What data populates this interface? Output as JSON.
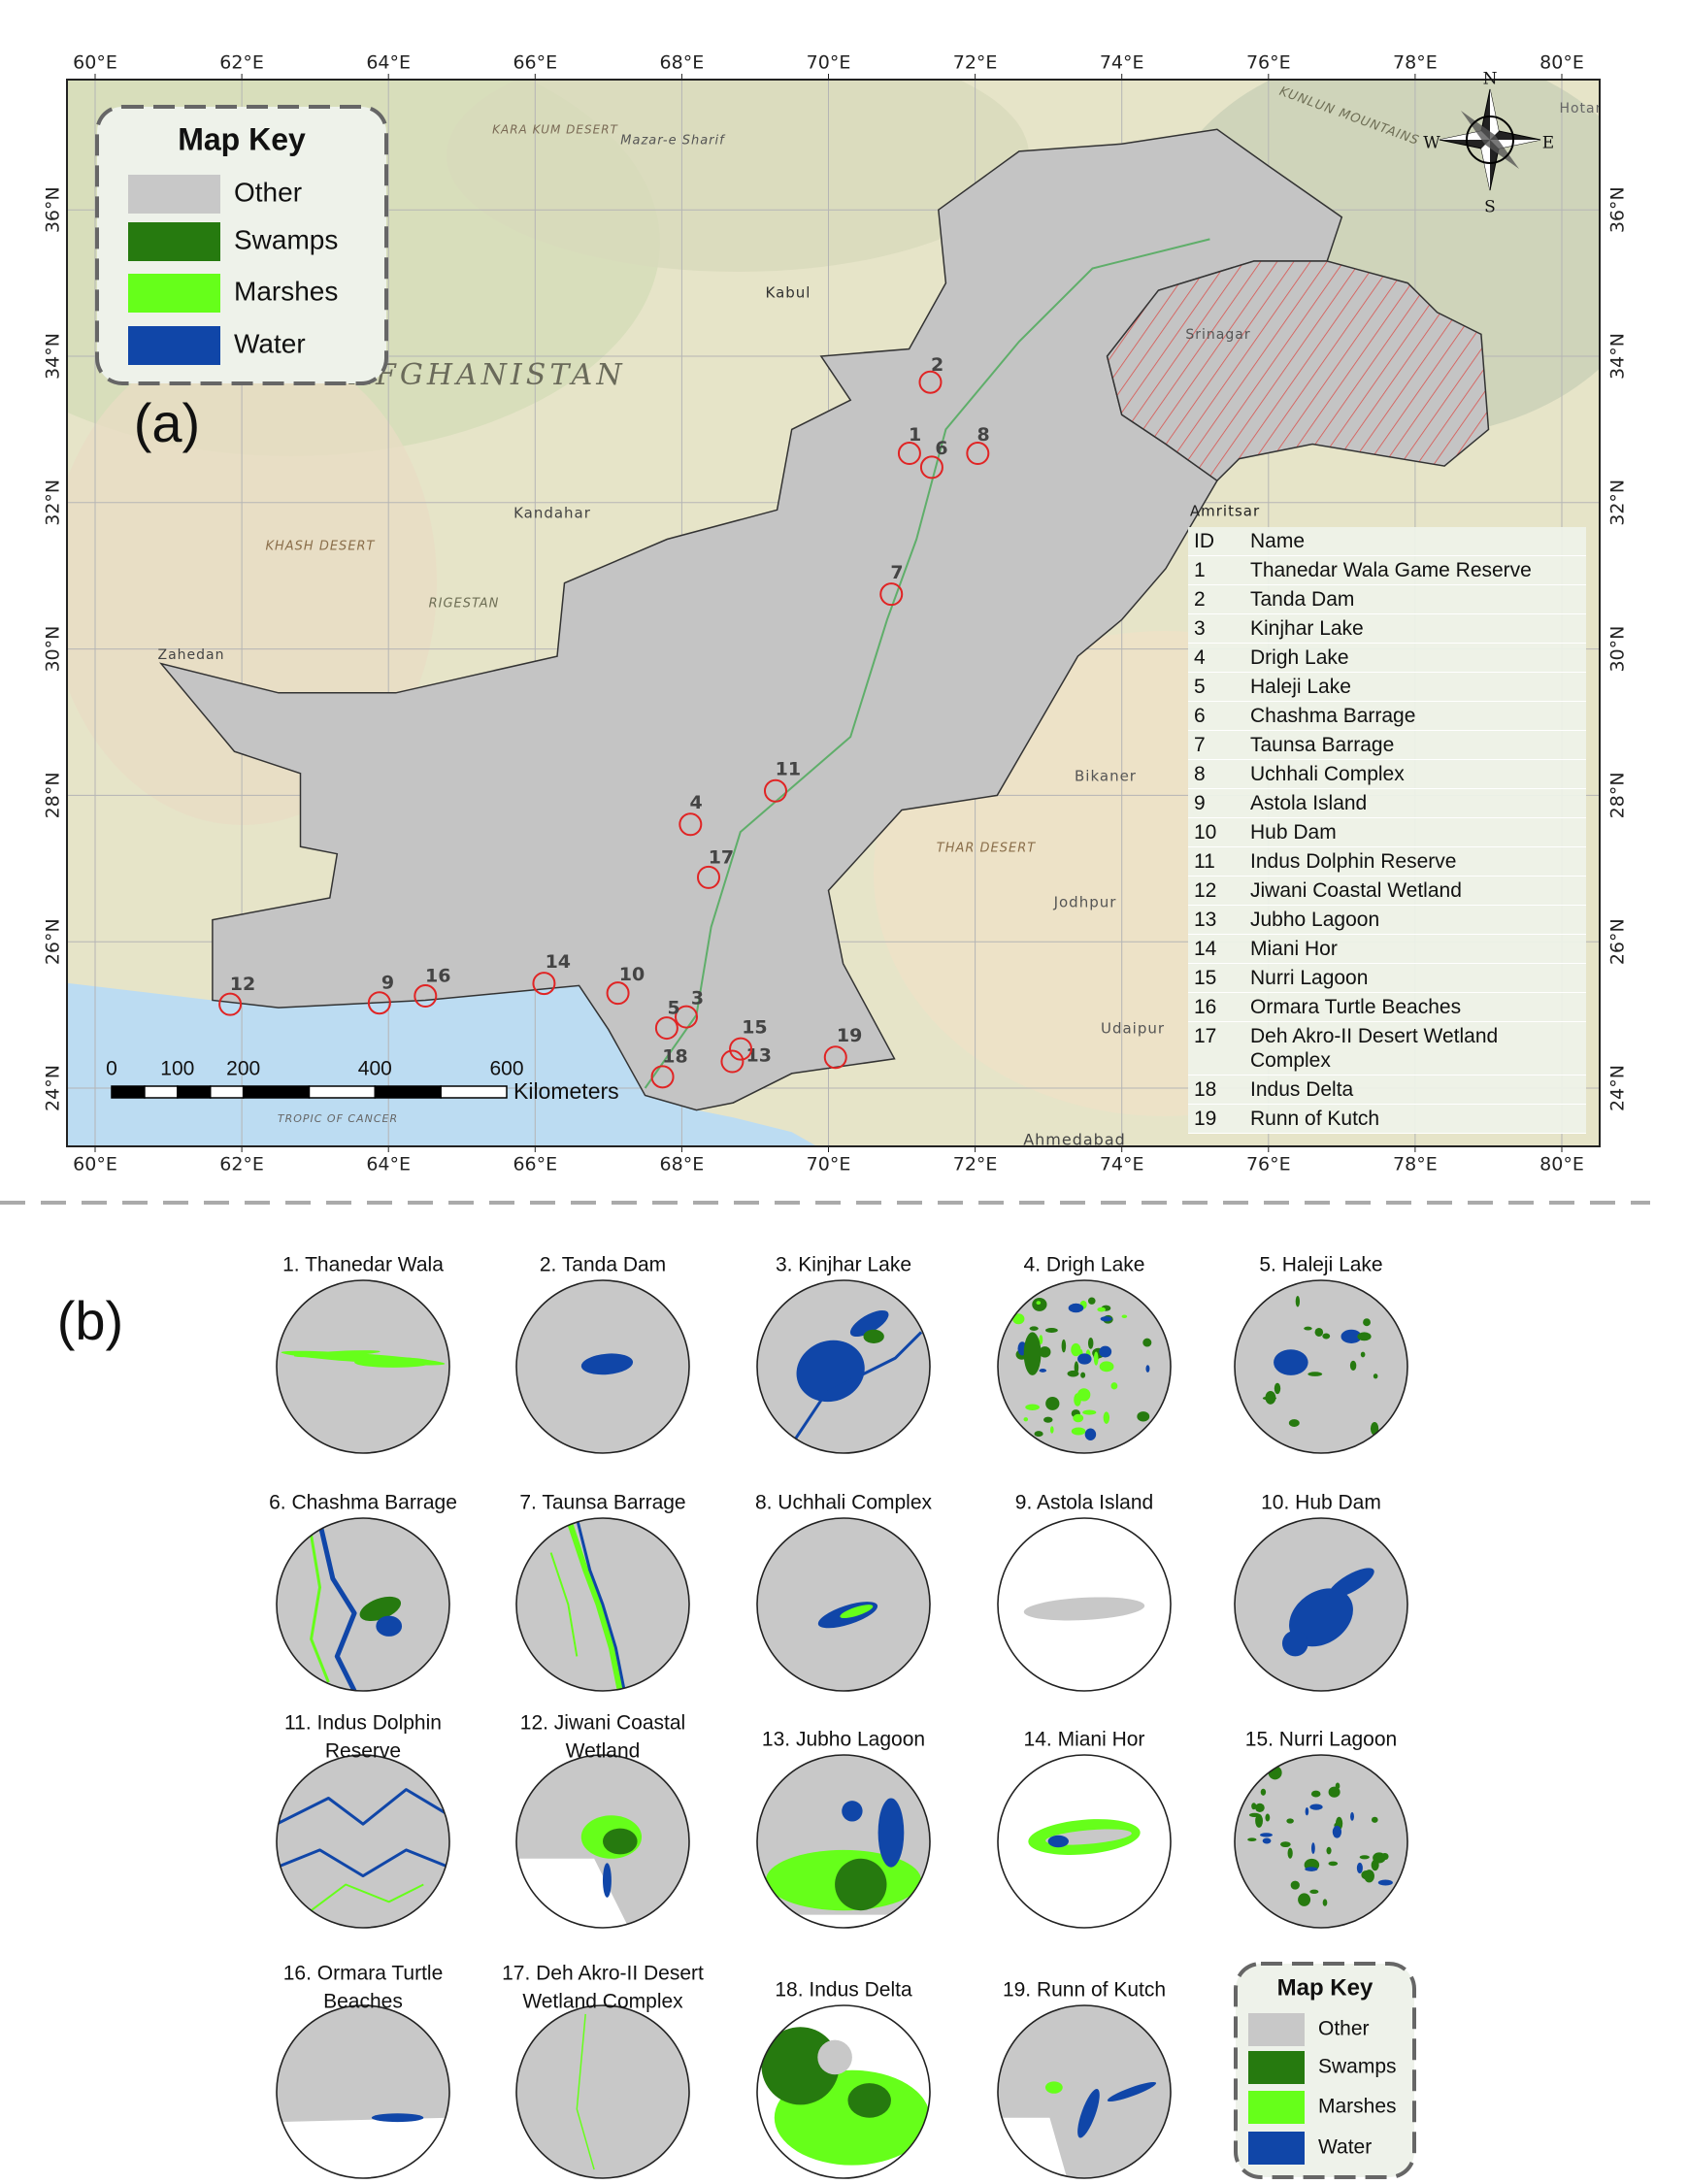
{
  "panel_a": {
    "label": "(a)",
    "lon_ticks": [
      "60°E",
      "62°E",
      "64°E",
      "66°E",
      "68°E",
      "70°E",
      "72°E",
      "74°E",
      "76°E",
      "78°E",
      "80°E"
    ],
    "lat_ticks": [
      "24°N",
      "26°N",
      "28°N",
      "30°N",
      "32°N",
      "34°N",
      "36°N"
    ],
    "map_key": {
      "title": "Map Key",
      "items": [
        {
          "label": "Other",
          "color": "#c8c8c8"
        },
        {
          "label": "Swamps",
          "color": "#267a0f"
        },
        {
          "label": "Marshes",
          "color": "#66ff1a"
        },
        {
          "label": "Water",
          "color": "#1046a8"
        }
      ]
    },
    "compass": [
      "N",
      "E",
      "S",
      "W"
    ],
    "scale_bar": {
      "ticks": [
        "0",
        "100",
        "200",
        "400",
        "600"
      ],
      "unit": "Kilometers"
    },
    "places": [
      "KARA KUM DESERT",
      "Mazar-e Sharif",
      "Kabul",
      "AFGHANISTAN",
      "Kandahar",
      "KHASH DESERT",
      "RIGESTAN",
      "Zahedan",
      "Amritsar",
      "Srinagar",
      "Bikaner",
      "THAR DESERT",
      "Jodhpur",
      "Udaipur",
      "Ahmedabad",
      "TROPIC OF CANCER",
      "KUNLUN MOUNTAINS",
      "Hotan"
    ],
    "sites": {
      "header": [
        "ID",
        "Name"
      ],
      "rows": [
        [
          "1",
          "Thanedar Wala Game Reserve"
        ],
        [
          "2",
          "Tanda Dam"
        ],
        [
          "3",
          "Kinjhar Lake"
        ],
        [
          "4",
          "Drigh Lake"
        ],
        [
          "5",
          "Haleji Lake"
        ],
        [
          "6",
          "Chashma Barrage"
        ],
        [
          "7",
          "Taunsa Barrage"
        ],
        [
          "8",
          "Uchhali Complex"
        ],
        [
          "9",
          "Astola Island"
        ],
        [
          "10",
          "Hub Dam"
        ],
        [
          "11",
          "Indus Dolphin Reserve"
        ],
        [
          "12",
          "Jiwani Coastal Wetland"
        ],
        [
          "13",
          "Jubho Lagoon"
        ],
        [
          "14",
          "Miani Hor"
        ],
        [
          "15",
          "Nurri Lagoon"
        ],
        [
          "16",
          "Ormara Turtle Beaches"
        ],
        [
          "17",
          "Deh Akro-II Desert Wetland Complex"
        ],
        [
          "18",
          "Indus Delta"
        ],
        [
          "19",
          "Runn of Kutch"
        ]
      ]
    }
  },
  "panel_b": {
    "label": "(b)",
    "insets": [
      [
        "1. Thanedar Wala"
      ],
      [
        "2. Tanda Dam"
      ],
      [
        "3. Kinjhar Lake"
      ],
      [
        "4. Drigh Lake"
      ],
      [
        "5. Haleji Lake"
      ],
      [
        "6. Chashma Barrage"
      ],
      [
        "7. Taunsa Barrage"
      ],
      [
        "8. Uchhali Complex"
      ],
      [
        "9. Astola Island"
      ],
      [
        "10. Hub Dam"
      ],
      [
        "11. Indus Dolphin",
        "Reserve"
      ],
      [
        "12. Jiwani Coastal",
        "Wetland"
      ],
      [
        "13. Jubho Lagoon"
      ],
      [
        "14. Miani Hor"
      ],
      [
        "15. Nurri Lagoon"
      ],
      [
        "16. Ormara Turtle",
        "Beaches"
      ],
      [
        "17. Deh Akro-II Desert",
        "Wetland Complex"
      ],
      [
        "18. Indus Delta"
      ],
      [
        "19. Runn of Kutch"
      ]
    ],
    "map_key": {
      "title": "Map Key",
      "items": [
        {
          "label": "Other",
          "color": "#c8c8c8"
        },
        {
          "label": "Swamps",
          "color": "#267a0f"
        },
        {
          "label": "Marshes",
          "color": "#66ff1a"
        },
        {
          "label": "Water",
          "color": "#1046a8"
        }
      ]
    }
  }
}
